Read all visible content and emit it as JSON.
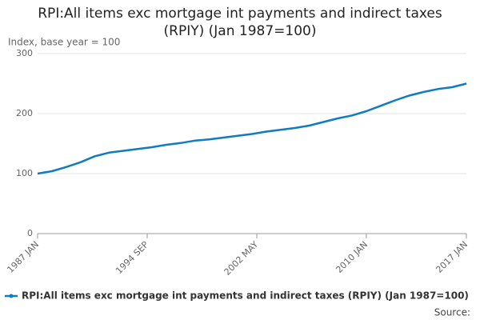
{
  "chart_data": {
    "type": "line",
    "title": "RPI:All items exc mortgage int payments and indirect taxes (RPIY) (Jan 1987=100)",
    "y_label": "Index, base year = 100",
    "source": "Source:",
    "x": [
      "1987-01",
      "1988-01",
      "1989-01",
      "1990-01",
      "1991-01",
      "1992-01",
      "1993-01",
      "1994-01",
      "1995-01",
      "1996-01",
      "1997-01",
      "1998-01",
      "1999-01",
      "2000-01",
      "2001-01",
      "2002-01",
      "2003-01",
      "2004-01",
      "2005-01",
      "2006-01",
      "2007-01",
      "2008-01",
      "2009-01",
      "2010-01",
      "2011-01",
      "2012-01",
      "2013-01",
      "2014-01",
      "2015-01",
      "2016-01",
      "2017-01"
    ],
    "series": [
      {
        "name": "RPI:All items exc mortgage int payments and indirect taxes (RPIY) (Jan 1987=100)",
        "color": "#0f7cc1",
        "values": [
          100,
          104,
          111,
          119,
          129,
          135,
          138,
          141,
          144,
          148,
          151,
          155,
          157,
          160,
          163,
          166,
          170,
          173,
          176,
          180,
          186,
          192,
          197,
          204,
          213,
          222,
          230,
          236,
          241,
          244,
          250
        ]
      }
    ],
    "xlim": [
      "1987-01",
      "2017-01"
    ],
    "xticks": [
      {
        "value": "1987-01",
        "label": "1987 JAN"
      },
      {
        "value": "1994-09",
        "label": "1994 SEP"
      },
      {
        "value": "2002-05",
        "label": "2002 MAY"
      },
      {
        "value": "2010-01",
        "label": "2010 JAN"
      },
      {
        "value": "2017-01",
        "label": "2017 JAN"
      }
    ],
    "ylim": [
      0,
      300
    ],
    "yticks": [
      0,
      100,
      200,
      300
    ],
    "grid": true
  }
}
